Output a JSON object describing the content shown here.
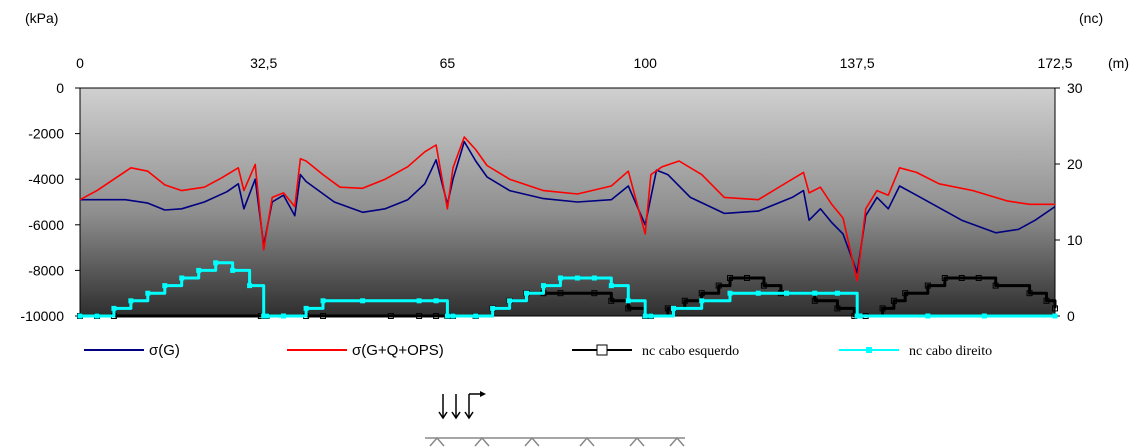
{
  "chart_data": {
    "type": "line",
    "units": {
      "left": "(kPa)",
      "right": "(nc)",
      "top": "(m)"
    },
    "x_ticks": [
      "0",
      "32,5",
      "65",
      "100",
      "137,5",
      "172,5"
    ],
    "x_tick_values": [
      0,
      32.5,
      65,
      100,
      137.5,
      172.5
    ],
    "xlim": [
      0,
      172.5
    ],
    "y_ticks": [
      "0",
      "-2000",
      "-4000",
      "-6000",
      "-8000",
      "-10000"
    ],
    "ylim": [
      -10000,
      0
    ],
    "y2_ticks": [
      "30",
      "20",
      "10",
      "0"
    ],
    "y2lim": [
      0,
      30
    ],
    "legend_position": "bottom",
    "series": [
      {
        "name": "σ(G)",
        "axis": "left",
        "color": "#000080",
        "x": [
          0,
          8,
          12,
          15,
          18,
          22,
          26,
          28,
          29,
          31,
          32.5,
          34,
          36,
          38,
          39,
          40,
          45,
          50,
          54,
          58,
          61,
          63,
          65,
          66,
          68,
          70,
          72,
          76,
          82,
          88,
          94,
          97,
          100,
          102,
          104,
          108,
          114,
          120,
          126,
          128,
          129,
          131,
          133,
          135,
          137.5,
          139,
          141,
          143,
          145,
          148,
          156,
          162,
          166,
          169,
          172.5
        ],
        "y": [
          -4900,
          -4900,
          -5050,
          -5350,
          -5300,
          -5000,
          -4550,
          -4200,
          -5300,
          -4000,
          -6900,
          -5000,
          -4700,
          -5600,
          -3800,
          -4100,
          -5000,
          -5450,
          -5300,
          -4900,
          -4200,
          -3150,
          -5100,
          -4000,
          -2350,
          -3200,
          -3900,
          -4500,
          -4850,
          -5000,
          -4900,
          -4300,
          -6000,
          -3600,
          -3800,
          -4800,
          -5500,
          -5400,
          -4800,
          -4500,
          -5800,
          -5300,
          -5900,
          -6400,
          -8100,
          -5600,
          -4800,
          -5300,
          -4300,
          -4700,
          -5800,
          -6350,
          -6200,
          -5800,
          -5200
        ]
      },
      {
        "name": "σ(G+Q+OPS)",
        "axis": "left",
        "color": "#ff0000",
        "x": [
          0,
          3,
          6,
          9,
          12,
          15,
          18,
          22,
          25,
          28,
          29,
          31,
          32.5,
          34,
          36,
          38,
          39,
          40,
          43,
          46,
          50,
          54,
          58,
          61,
          63,
          65,
          66,
          68,
          70,
          72,
          76,
          82,
          88,
          94,
          97,
          100,
          101,
          103,
          106,
          110,
          114,
          120,
          124,
          128,
          129,
          131,
          133,
          135,
          137.5,
          139,
          141,
          143,
          145,
          148,
          152,
          158,
          164,
          168,
          172.5
        ],
        "y": [
          -4900,
          -4500,
          -4000,
          -3500,
          -3650,
          -4250,
          -4500,
          -4350,
          -3950,
          -3500,
          -4500,
          -3350,
          -7100,
          -4800,
          -4600,
          -5200,
          -3100,
          -3200,
          -3800,
          -4350,
          -4400,
          -4000,
          -3450,
          -2800,
          -2500,
          -5300,
          -3500,
          -2150,
          -2700,
          -3400,
          -4000,
          -4500,
          -4650,
          -4300,
          -3650,
          -6400,
          -3800,
          -3450,
          -3200,
          -3800,
          -4800,
          -4900,
          -4300,
          -3700,
          -4600,
          -4350,
          -5100,
          -5700,
          -8450,
          -5300,
          -4500,
          -4700,
          -3500,
          -3700,
          -4200,
          -4500,
          -4950,
          -5100,
          -5100
        ]
      },
      {
        "name": "nc  cabo esquerdo",
        "axis": "right",
        "color": "#000000",
        "x": [
          0,
          3,
          6,
          32,
          33,
          40,
          43,
          55,
          60,
          63,
          65,
          66,
          70,
          73,
          76,
          79,
          82,
          85,
          91,
          94,
          97,
          100,
          101,
          104,
          107,
          110,
          113,
          115,
          118,
          121,
          124,
          130,
          134,
          137,
          139,
          142,
          144,
          146,
          150,
          153,
          156,
          159,
          162,
          168,
          171,
          172.5
        ],
        "y": [
          0,
          0,
          0,
          0,
          0,
          0,
          0,
          0,
          0,
          0,
          0,
          0,
          0,
          1,
          2,
          3,
          3,
          3,
          3,
          2,
          1,
          0,
          0,
          1,
          2,
          3,
          4,
          5,
          5,
          4,
          3,
          2,
          1,
          0,
          0,
          1,
          2,
          3,
          4,
          5,
          5,
          5,
          4,
          3,
          2,
          1
        ]
      },
      {
        "name": "nc  cabo direito",
        "axis": "right",
        "color": "#00ffff",
        "x": [
          0,
          3,
          6,
          9,
          12,
          15,
          18,
          21,
          24,
          27,
          30,
          32.5,
          33,
          36,
          40,
          43,
          50,
          60,
          63,
          65,
          66,
          70,
          73,
          76,
          79,
          82,
          85,
          88,
          91,
          94,
          97,
          100,
          101,
          105,
          110,
          115,
          120,
          125,
          130,
          134,
          137.5,
          138,
          150,
          160,
          172.5
        ],
        "y": [
          0,
          0,
          1,
          2,
          3,
          4,
          5,
          6,
          7,
          6,
          4,
          0,
          0,
          0,
          1,
          2,
          2,
          2,
          2,
          0,
          0,
          0,
          1,
          2,
          3,
          4,
          5,
          5,
          5,
          4,
          2,
          0,
          0,
          1,
          2,
          3,
          3,
          3,
          3,
          3,
          0,
          0,
          0,
          0,
          0
        ]
      }
    ]
  }
}
